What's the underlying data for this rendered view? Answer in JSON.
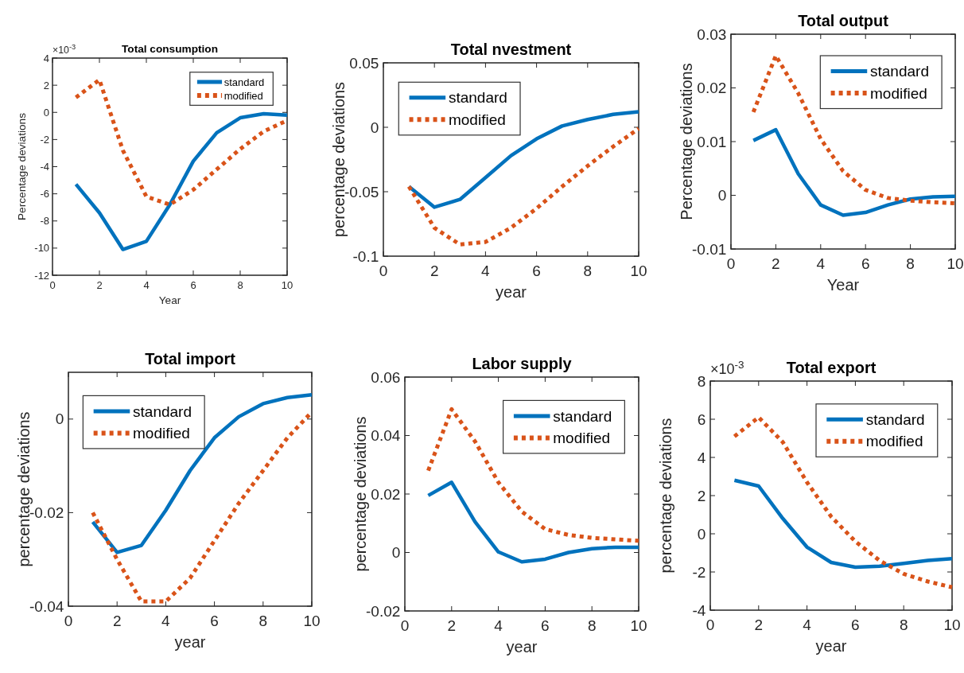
{
  "chart_data": [
    {
      "type": "line",
      "title": "Total consumption",
      "xlabel": "Year",
      "ylabel": "Percentage deviations",
      "annotations": [
        "×10$^{-3}$"
      ],
      "x": [
        1,
        2,
        3,
        4,
        5,
        6,
        7,
        8,
        9,
        10
      ],
      "xlim": [
        0,
        10
      ],
      "xticks": [
        0,
        2,
        4,
        6,
        8,
        10
      ],
      "ylim": [
        -12,
        4
      ],
      "yticks": [
        -12,
        -10,
        -8,
        -6,
        -4,
        -2,
        0,
        2,
        4
      ],
      "legend": "top right",
      "marker": "none",
      "grid": false,
      "series": [
        {
          "name": "standard",
          "color": "#0072bd",
          "line_style": "solid",
          "values": [
            -5.3,
            -7.4,
            -10.1,
            -9.5,
            -6.8,
            -3.6,
            -1.5,
            -0.4,
            -0.1,
            -0.2
          ]
        },
        {
          "name": "modified",
          "color": "#d95319",
          "line_style": "dotted",
          "values": [
            1.1,
            2.4,
            -2.8,
            -6.2,
            -6.8,
            -5.7,
            -4.2,
            -2.7,
            -1.4,
            -0.6
          ]
        }
      ]
    },
    {
      "type": "line",
      "title": "Total nvestment",
      "xlabel": "year",
      "ylabel": "percentage deviations",
      "x": [
        1,
        2,
        3,
        4,
        5,
        6,
        7,
        8,
        9,
        10
      ],
      "xlim": [
        0,
        10
      ],
      "xticks": [
        0,
        2,
        4,
        6,
        8,
        10
      ],
      "ylim": [
        -0.1,
        0.05
      ],
      "yticks": [
        -0.1,
        -0.05,
        0,
        0.05
      ],
      "legend": "top left",
      "marker": "none",
      "grid": false,
      "series": [
        {
          "name": "standard",
          "color": "#0072bd",
          "line_style": "solid",
          "values": [
            -0.046,
            -0.062,
            -0.056,
            -0.039,
            -0.022,
            -0.009,
            0.001,
            0.006,
            0.01,
            0.012
          ]
        },
        {
          "name": "modified",
          "color": "#d95319",
          "line_style": "dotted",
          "values": [
            -0.046,
            -0.078,
            -0.091,
            -0.089,
            -0.078,
            -0.063,
            -0.046,
            -0.03,
            -0.015,
            -0.001
          ]
        }
      ]
    },
    {
      "type": "line",
      "title": "Total output",
      "xlabel": "Year",
      "ylabel": "Percentage deviations",
      "x": [
        1,
        2,
        3,
        4,
        5,
        6,
        7,
        8,
        9,
        10
      ],
      "xlim": [
        0,
        10
      ],
      "xticks": [
        0,
        2,
        4,
        6,
        8,
        10
      ],
      "ylim": [
        -0.01,
        0.03
      ],
      "yticks": [
        -0.01,
        0,
        0.01,
        0.02,
        0.03
      ],
      "legend": "top right",
      "marker": "none",
      "grid": false,
      "series": [
        {
          "name": "standard",
          "color": "#0072bd",
          "line_style": "solid",
          "values": [
            0.0102,
            0.0122,
            0.004,
            -0.0018,
            -0.0037,
            -0.0032,
            -0.0018,
            -0.0007,
            -0.0003,
            -0.0002
          ]
        },
        {
          "name": "modified",
          "color": "#d95319",
          "line_style": "dotted",
          "values": [
            0.0155,
            0.026,
            0.019,
            0.0105,
            0.0045,
            0.001,
            -0.0005,
            -0.001,
            -0.0013,
            -0.0015
          ]
        }
      ]
    },
    {
      "type": "line",
      "title": "Total import",
      "xlabel": "year",
      "ylabel": "percentage deviations",
      "x": [
        1,
        2,
        3,
        4,
        5,
        6,
        7,
        8,
        9,
        10
      ],
      "xlim": [
        0,
        10
      ],
      "xticks": [
        0,
        2,
        4,
        6,
        8,
        10
      ],
      "ylim": [
        -0.04,
        0.01
      ],
      "yticks": [
        -0.04,
        -0.02,
        0
      ],
      "legend": "top left",
      "marker": "none",
      "grid": false,
      "series": [
        {
          "name": "standard",
          "color": "#0072bd",
          "line_style": "solid",
          "values": [
            -0.022,
            -0.0285,
            -0.027,
            -0.0195,
            -0.011,
            -0.004,
            0.0005,
            0.0033,
            0.0046,
            0.0052
          ]
        },
        {
          "name": "modified",
          "color": "#d95319",
          "line_style": "dotted",
          "values": [
            -0.02,
            -0.03,
            -0.039,
            -0.039,
            -0.034,
            -0.026,
            -0.018,
            -0.011,
            -0.004,
            0.0015
          ]
        }
      ]
    },
    {
      "type": "line",
      "title": "Labor supply",
      "xlabel": "year",
      "ylabel": "percentage deviations",
      "x": [
        1,
        2,
        3,
        4,
        5,
        6,
        7,
        8,
        9,
        10
      ],
      "xlim": [
        0,
        10
      ],
      "xticks": [
        0,
        2,
        4,
        6,
        8,
        10
      ],
      "ylim": [
        -0.02,
        0.06
      ],
      "yticks": [
        -0.02,
        0,
        0.02,
        0.04,
        0.06
      ],
      "legend": "top right",
      "marker": "none",
      "grid": false,
      "series": [
        {
          "name": "standard",
          "color": "#0072bd",
          "line_style": "solid",
          "values": [
            0.0195,
            0.024,
            0.0105,
            0.0002,
            -0.0032,
            -0.0023,
            0,
            0.0013,
            0.0018,
            0.0018
          ]
        },
        {
          "name": "modified",
          "color": "#d95319",
          "line_style": "dotted",
          "values": [
            0.028,
            0.049,
            0.038,
            0.024,
            0.014,
            0.008,
            0.006,
            0.005,
            0.0045,
            0.004
          ]
        }
      ]
    },
    {
      "type": "line",
      "title": "Total export",
      "xlabel": "year",
      "ylabel": "percentage deviations",
      "annotations": [
        "×10$^{-3}$"
      ],
      "x": [
        1,
        2,
        3,
        4,
        5,
        6,
        7,
        8,
        9,
        10
      ],
      "xlim": [
        0,
        10
      ],
      "xticks": [
        0,
        2,
        4,
        6,
        8,
        10
      ],
      "ylim": [
        -4,
        8
      ],
      "yticks": [
        -4,
        -2,
        0,
        2,
        4,
        6,
        8
      ],
      "legend": "top right",
      "marker": "none",
      "grid": false,
      "series": [
        {
          "name": "standard",
          "color": "#0072bd",
          "line_style": "solid",
          "values": [
            2.8,
            2.5,
            0.8,
            -0.7,
            -1.5,
            -1.75,
            -1.7,
            -1.55,
            -1.4,
            -1.3
          ]
        },
        {
          "name": "modified",
          "color": "#d95319",
          "line_style": "dotted",
          "values": [
            5.1,
            6.1,
            4.8,
            2.7,
            0.9,
            -0.4,
            -1.4,
            -2.1,
            -2.5,
            -2.8
          ]
        }
      ]
    }
  ]
}
